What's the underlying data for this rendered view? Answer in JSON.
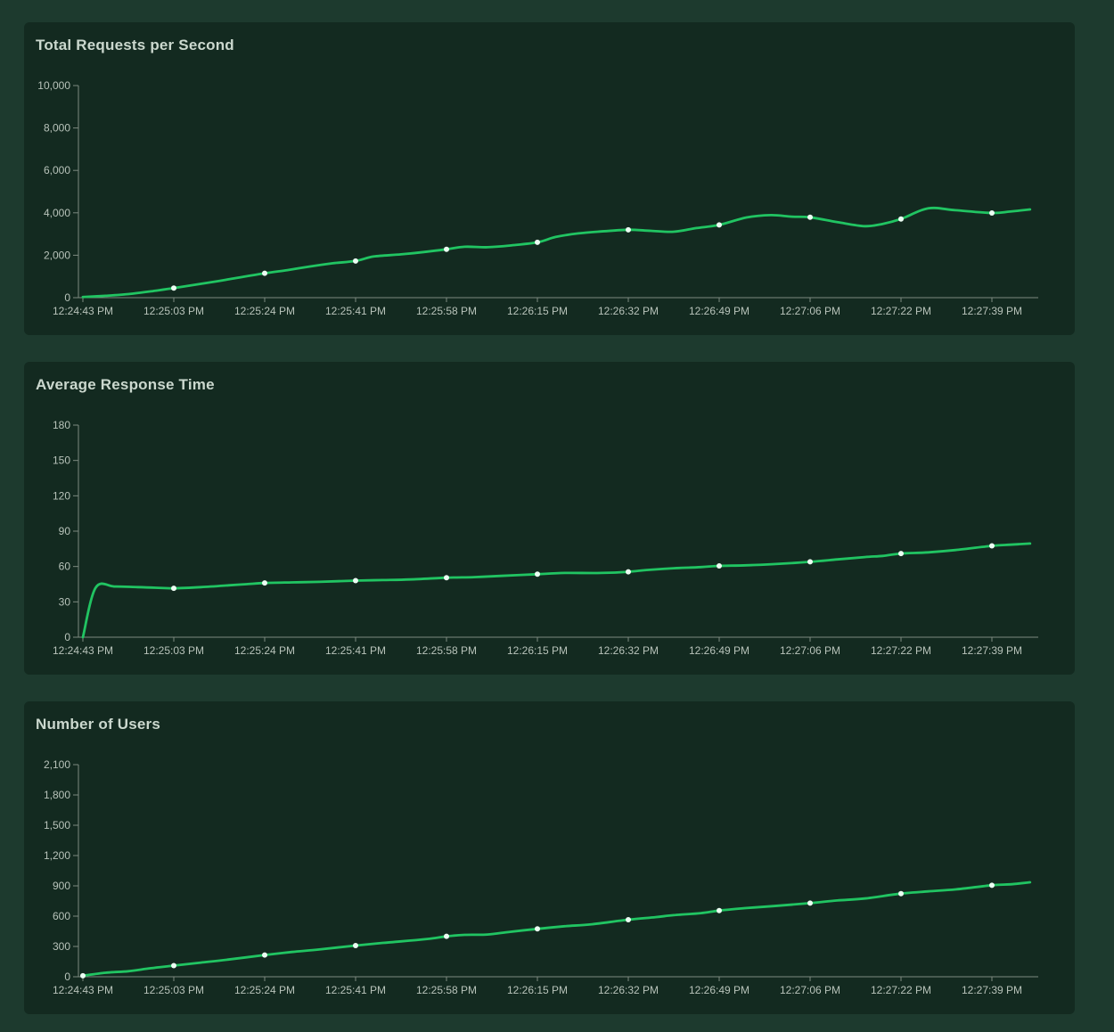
{
  "page": {
    "background": "#1d3a2e"
  },
  "panel": {
    "background": "#132a20"
  },
  "colors": {
    "line": "#21c462",
    "dot": "#ecfdf3",
    "axis": "#7d8a80",
    "tick_label": "#b8c3ba",
    "title": "#cbd8ce"
  },
  "chart_data": [
    {
      "type": "line",
      "title": "Total Requests per Second",
      "xlabel": "",
      "ylabel": "",
      "legend": "none",
      "grid": "off",
      "y_max": 10000,
      "y_ticks": [
        "0",
        "2,000",
        "4,000",
        "6,000",
        "8,000",
        "10,000"
      ],
      "x_labels": [
        "12:24:43 PM",
        "12:25:03 PM",
        "12:25:24 PM",
        "12:25:41 PM",
        "12:25:58 PM",
        "12:26:15 PM",
        "12:26:32 PM",
        "12:26:49 PM",
        "12:27:06 PM",
        "12:27:22 PM",
        "12:27:39 PM"
      ],
      "x": [
        0,
        0.25,
        0.5,
        0.75,
        1,
        1.25,
        1.5,
        1.75,
        2,
        2.25,
        2.5,
        2.75,
        3,
        3.2,
        3.5,
        3.75,
        4,
        4.2,
        4.45,
        4.7,
        5,
        5.2,
        5.45,
        5.7,
        6,
        6.25,
        6.5,
        6.75,
        7,
        7.3,
        7.57,
        7.8,
        8,
        8.3,
        8.6,
        8.8,
        9,
        9.3,
        9.6,
        10,
        10.2,
        10.42
      ],
      "values": [
        30,
        90,
        170,
        300,
        450,
        620,
        790,
        970,
        1150,
        1300,
        1470,
        1620,
        1730,
        1940,
        2040,
        2150,
        2280,
        2400,
        2380,
        2460,
        2610,
        2860,
        3030,
        3120,
        3200,
        3150,
        3110,
        3280,
        3430,
        3780,
        3890,
        3820,
        3790,
        3560,
        3370,
        3480,
        3710,
        4210,
        4120,
        3990,
        4060,
        4160
      ],
      "markers": [
        1,
        2,
        3,
        4,
        5,
        6,
        7,
        8,
        9,
        10
      ]
    },
    {
      "type": "line",
      "title": "Average Response Time",
      "xlabel": "",
      "ylabel": "",
      "legend": "none",
      "grid": "off",
      "y_max": 180,
      "y_ticks": [
        "0",
        "30",
        "60",
        "90",
        "120",
        "150",
        "180"
      ],
      "x_labels": [
        "12:24:43 PM",
        "12:25:03 PM",
        "12:25:24 PM",
        "12:25:41 PM",
        "12:25:58 PM",
        "12:26:15 PM",
        "12:26:32 PM",
        "12:26:49 PM",
        "12:27:06 PM",
        "12:27:22 PM",
        "12:27:39 PM"
      ],
      "x": [
        0,
        0.14,
        0.35,
        0.6,
        0.8,
        1,
        1.3,
        1.6,
        1.8,
        2,
        2.3,
        2.6,
        3,
        3.3,
        3.6,
        4,
        4.3,
        4.6,
        5,
        5.3,
        5.7,
        6,
        6.2,
        6.5,
        6.8,
        7,
        7.3,
        7.6,
        8,
        8.3,
        8.6,
        8.8,
        9,
        9.3,
        9.6,
        10,
        10.2,
        10.42
      ],
      "values": [
        0,
        42,
        43,
        42.5,
        42,
        41.5,
        42.5,
        44,
        45,
        46,
        46.5,
        47,
        48,
        48.5,
        49,
        50.5,
        51,
        52,
        53.5,
        54.5,
        54.5,
        55.5,
        57,
        58.5,
        59.5,
        60.5,
        61,
        62,
        64,
        66,
        68,
        69,
        71,
        72,
        74,
        77.5,
        78.5,
        79.5
      ],
      "markers": [
        1,
        2,
        3,
        4,
        5,
        6,
        7,
        8,
        9,
        10
      ]
    },
    {
      "type": "line",
      "title": "Number of Users",
      "xlabel": "",
      "ylabel": "",
      "legend": "none",
      "grid": "off",
      "y_max": 2100,
      "y_ticks": [
        "0",
        "300",
        "600",
        "900",
        "1,200",
        "1,500",
        "1,800",
        "2,100"
      ],
      "x_labels": [
        "12:24:43 PM",
        "12:25:03 PM",
        "12:25:24 PM",
        "12:25:41 PM",
        "12:25:58 PM",
        "12:26:15 PM",
        "12:26:32 PM",
        "12:26:49 PM",
        "12:27:06 PM",
        "12:27:22 PM",
        "12:27:39 PM"
      ],
      "x": [
        0,
        0.25,
        0.5,
        0.75,
        1,
        1.3,
        1.6,
        2,
        2.3,
        2.6,
        3,
        3.3,
        3.5,
        3.8,
        4,
        4.2,
        4.45,
        4.7,
        5,
        5.3,
        5.6,
        6,
        6.3,
        6.5,
        6.8,
        7,
        7.3,
        7.6,
        8,
        8.3,
        8.6,
        9,
        9.3,
        9.6,
        10,
        10.2,
        10.42
      ],
      "values": [
        10,
        40,
        55,
        85,
        110,
        140,
        170,
        215,
        245,
        270,
        309,
        335,
        350,
        375,
        400,
        415,
        418,
        445,
        474,
        500,
        520,
        565,
        590,
        610,
        630,
        655,
        680,
        700,
        729,
        755,
        775,
        823,
        845,
        865,
        906,
        915,
        935
      ],
      "markers": [
        0,
        1,
        2,
        3,
        4,
        5,
        6,
        7,
        8,
        9,
        10
      ]
    }
  ]
}
